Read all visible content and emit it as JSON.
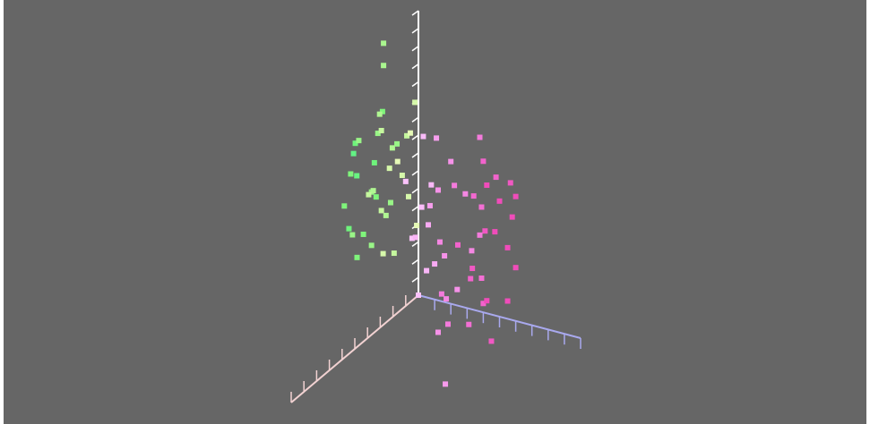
{
  "chart_data": {
    "type": "scatter3d",
    "xlim": [
      0,
      10
    ],
    "ylim": [
      0,
      16
    ],
    "zlim": [
      0,
      10
    ],
    "xticks": [
      1,
      2,
      3,
      4,
      5,
      6,
      7,
      8,
      9,
      10
    ],
    "yticks": [
      1,
      2,
      3,
      4,
      5,
      6,
      7,
      8,
      9,
      10,
      11,
      12,
      13,
      14,
      15,
      16
    ],
    "zticks": [
      1,
      2,
      3,
      4,
      5,
      6,
      7,
      8,
      9,
      10
    ],
    "axis_colors": {
      "x": "#f2d2d2",
      "y": "#ffffff",
      "z": "#a9a9ee"
    },
    "background": "#666666",
    "x": [
      -1,
      0,
      1,
      0.5,
      -0.5,
      1.5,
      0,
      -1,
      0.5,
      1,
      -0.5,
      0,
      1,
      1.5,
      0.5,
      -1,
      0,
      1,
      -0.5,
      0.5,
      2,
      2,
      -1.5,
      0,
      1,
      0.5,
      -1,
      1.5,
      0,
      1,
      -0.5,
      2,
      0,
      1,
      -1,
      0,
      1,
      -1,
      0,
      1,
      -0.5,
      0.5,
      1.5,
      0,
      -1,
      0.5,
      1,
      0,
      -0.5,
      1,
      0,
      1.5,
      0,
      -1,
      0.5,
      1,
      0,
      -0.5,
      1,
      0.5,
      -1,
      1.5,
      0,
      1,
      -0.5,
      0.5,
      1,
      0,
      2,
      2,
      -1.5,
      0,
      1,
      0.5,
      -1,
      0,
      1,
      0,
      0.5,
      0,
      1,
      -0.5,
      0,
      0,
      0,
      0
    ],
    "y": [
      9,
      8.5,
      9.5,
      8,
      7.5,
      7,
      6.5,
      6,
      5.5,
      5,
      4.5,
      4,
      3.5,
      3,
      2.5,
      8,
      7,
      6,
      5,
      3,
      4,
      6.5,
      7,
      9,
      8,
      10,
      10,
      9,
      2,
      2,
      3.5,
      5.5,
      5.8,
      7.5,
      4,
      8,
      7.5,
      7,
      6.5,
      6,
      5.5,
      5,
      4.5,
      4,
      3.5,
      3,
      2.5,
      2,
      1.5,
      1,
      0.5,
      0,
      8.5,
      9,
      9.5,
      8,
      7,
      6,
      5.5,
      4.5,
      5,
      3.5,
      3,
      1.5,
      0.5,
      -0.5,
      -1,
      -1.5,
      2,
      5,
      6.5,
      1,
      7,
      6.8,
      2.5,
      9,
      7,
      5,
      3.5,
      1.5,
      4,
      6,
      0,
      13.65,
      12.4,
      -4.6
    ],
    "z": [
      -3,
      -2.5,
      -1.5,
      -3.5,
      -2,
      -3,
      -1,
      -3.5,
      -2.5,
      -1.5,
      -3,
      -2,
      -3.5,
      -1,
      -2.5,
      -1.5,
      -4,
      -2,
      -1,
      -3,
      -2.5,
      -1.5,
      -2.5,
      -0.5,
      -0.5,
      -2,
      -1,
      -2.5,
      -1.5,
      -3,
      -0.5,
      -3,
      -3.8,
      -1,
      -2.5,
      2,
      3,
      4,
      5,
      1.5,
      3.5,
      4.5,
      2.5,
      5.5,
      3,
      2,
      4,
      1,
      3.5,
      2.5,
      4,
      3,
      4,
      3,
      1.5,
      5,
      6,
      2.5,
      5.5,
      1,
      5,
      4.5,
      6,
      5,
      2,
      3.5,
      2,
      4.5,
      3,
      4,
      4.5,
      5.5,
      2,
      3.8,
      2.5,
      0.3,
      0,
      0.2,
      0,
      0.5,
      0.6,
      0.4,
      0,
      -2.15,
      -2.15,
      1.66
    ]
  }
}
